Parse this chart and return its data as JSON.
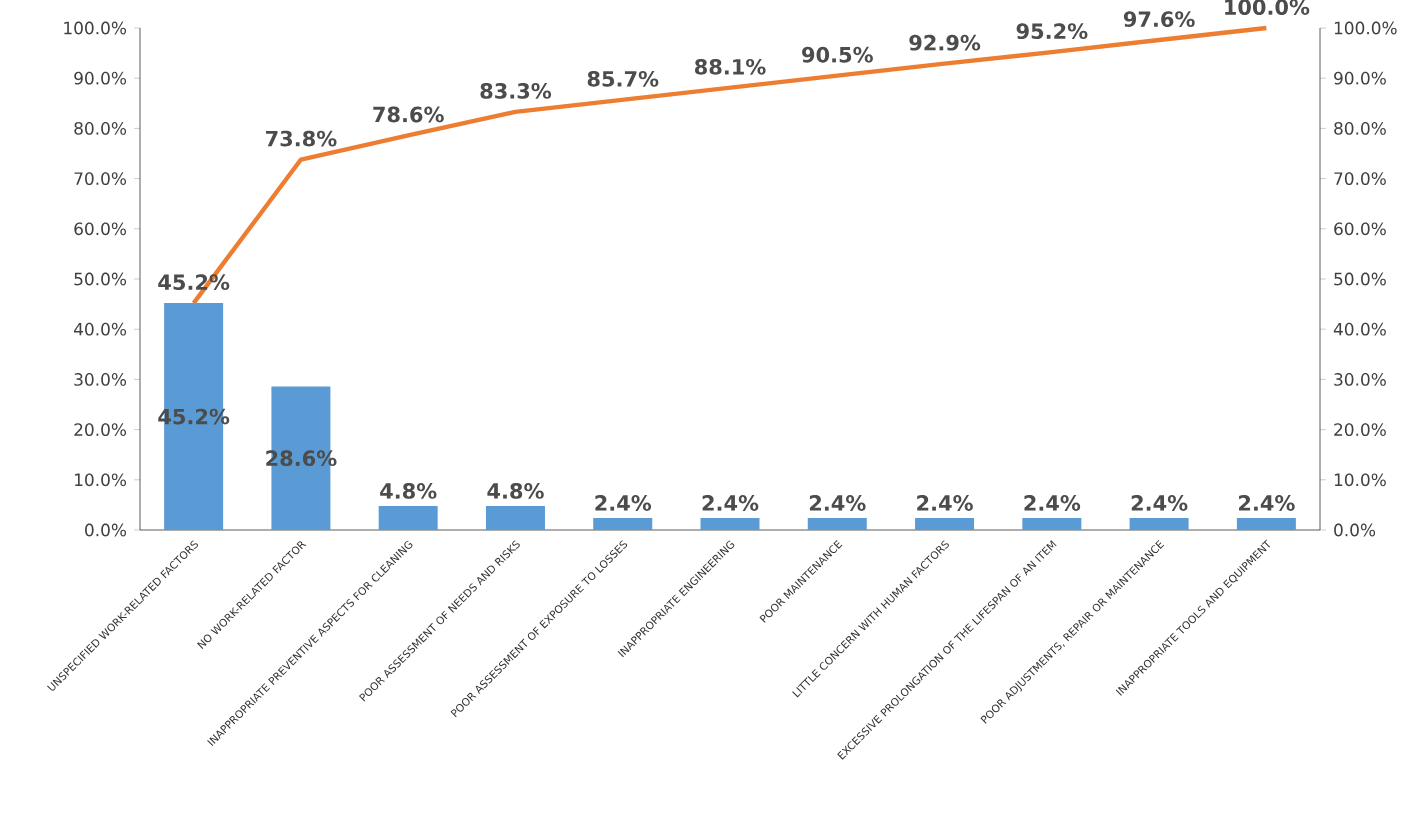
{
  "chart_data": {
    "type": "bar",
    "categories": [
      "UNSPECIFIED WORK-RELATED FACTORS",
      "NO WORK-RELATED FACTOR",
      "INAPPROPRIATE PREVENTIVE ASPECTS FOR CLEANING",
      "POOR ASSESSMENT OF NEEDS AND RISKS",
      "POOR ASSESSMENT OF EXPOSURE TO LOSSES",
      "INAPPROPRIATE ENGINEERING",
      "POOR MAINTENANCE",
      "LITTLE CONCERN WITH HUMAN FACTORS",
      "EXCESSIVE PROLONGATION OF THE LIFESPAN OF AN ITEM",
      "POOR ADJUSTMENTS, REPAIR OR MAINTENANCE",
      "INAPPROPRIATE TOOLS AND EQUIPMENT"
    ],
    "series": [
      {
        "color": "#5b9bd5",
        "values": [
          45.2,
          28.6,
          4.8,
          4.8,
          2.4,
          2.4,
          2.4,
          2.4,
          2.4,
          2.4,
          2.4
        ],
        "value_labels": [
          "45.2%",
          "28.6%",
          "4.8%",
          "4.8%",
          "2.4%",
          "2.4%",
          "2.4%",
          "2.4%",
          "2.4%",
          "2.4%",
          "2.4%"
        ]
      },
      {
        "type": "line",
        "axis": "y2",
        "color": "#ed7d31",
        "values": [
          45.2,
          73.8,
          78.6,
          83.3,
          85.7,
          88.1,
          90.5,
          92.9,
          95.2,
          97.6,
          100.0
        ],
        "value_labels": [
          "45.2%",
          "73.8%",
          "78.6%",
          "83.3%",
          "85.7%",
          "88.1%",
          "90.5%",
          "92.9%",
          "95.2%",
          "97.6%",
          "100.0%"
        ]
      }
    ],
    "ylim": [
      0,
      100
    ],
    "yticks": [
      {
        "value": 0,
        "label": "0.0%"
      },
      {
        "value": 10,
        "label": "10.0%"
      },
      {
        "value": 20,
        "label": "20.0%"
      },
      {
        "value": 30,
        "label": "30.0%"
      },
      {
        "value": 40,
        "label": "40.0%"
      },
      {
        "value": 50,
        "label": "50.0%"
      },
      {
        "value": 60,
        "label": "60.0%"
      },
      {
        "value": 70,
        "label": "70.0%"
      },
      {
        "value": 80,
        "label": "80.0%"
      },
      {
        "value": 90,
        "label": "90.0%"
      },
      {
        "value": 100,
        "label": "100.0%"
      }
    ],
    "y2lim": [
      0,
      100
    ],
    "y2ticks": [
      {
        "value": 0,
        "label": "0.0%"
      },
      {
        "value": 10,
        "label": "10.0%"
      },
      {
        "value": 20,
        "label": "20.0%"
      },
      {
        "value": 30,
        "label": "30.0%"
      },
      {
        "value": 40,
        "label": "40.0%"
      },
      {
        "value": 50,
        "label": "50.0%"
      },
      {
        "value": 60,
        "label": "60.0%"
      },
      {
        "value": 70,
        "label": "70.0%"
      },
      {
        "value": 80,
        "label": "80.0%"
      },
      {
        "value": 90,
        "label": "90.0%"
      },
      {
        "value": 100,
        "label": "100.0%"
      }
    ],
    "marker": "none",
    "line_style": "solid",
    "grid": false
  }
}
